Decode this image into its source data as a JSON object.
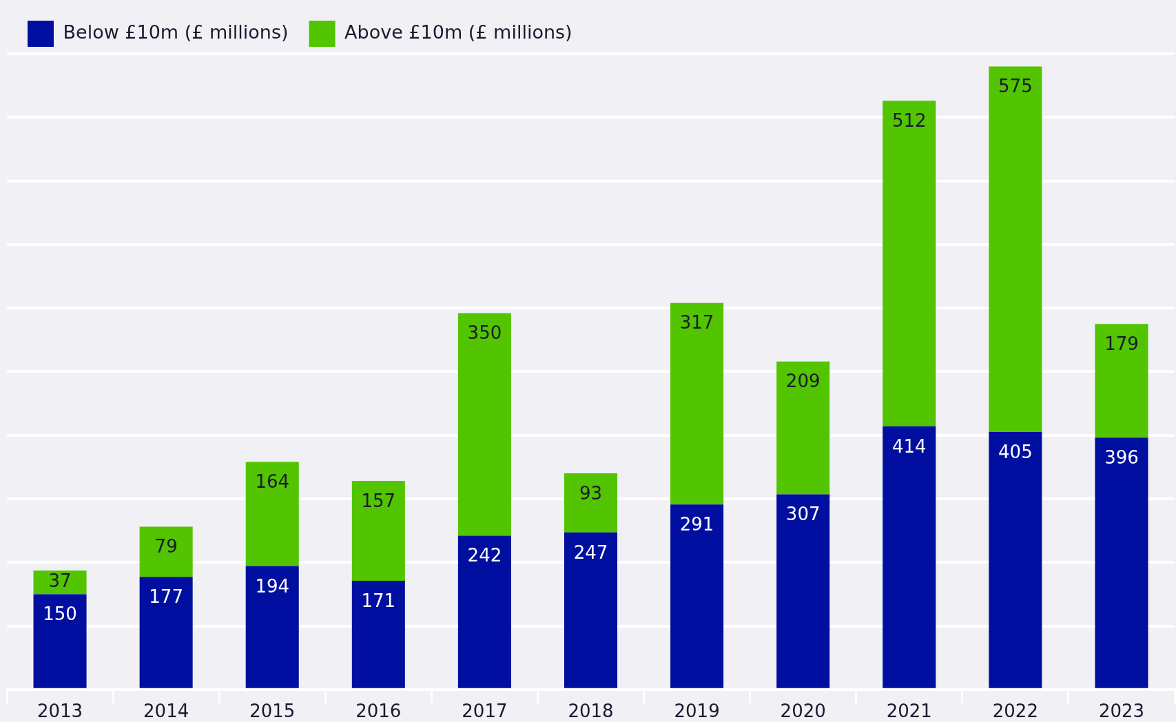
{
  "chart_data": {
    "type": "bar",
    "stacked": true,
    "categories": [
      "2013",
      "2014",
      "2015",
      "2016",
      "2017",
      "2018",
      "2019",
      "2020",
      "2021",
      "2022",
      "2023"
    ],
    "series": [
      {
        "name": "Below £10m (£ millions)",
        "color": "#000f9f",
        "values": [
          150,
          177,
          194,
          171,
          242,
          247,
          291,
          307,
          414,
          405,
          396
        ]
      },
      {
        "name": "Above £10m (£ millions)",
        "color": "#52c400",
        "values": [
          37,
          79,
          164,
          157,
          350,
          93,
          317,
          209,
          512,
          575,
          179
        ]
      }
    ],
    "ylim": [
      0,
      1000
    ],
    "yticks": [
      {
        "value": 0,
        "label": null
      },
      {
        "value": 100,
        "label": null
      },
      {
        "value": 200,
        "label": null
      },
      {
        "value": 300,
        "label": null
      },
      {
        "value": 400,
        "label": null
      },
      {
        "value": 500,
        "label": null
      },
      {
        "value": 600,
        "label": null
      },
      {
        "value": 700,
        "label": null
      },
      {
        "value": 800,
        "label": null
      },
      {
        "value": 900,
        "label": null
      },
      {
        "value": 1000,
        "label": null
      }
    ],
    "tick_labels": "x",
    "grid": "y",
    "legend": "top left",
    "data_labels": true
  }
}
